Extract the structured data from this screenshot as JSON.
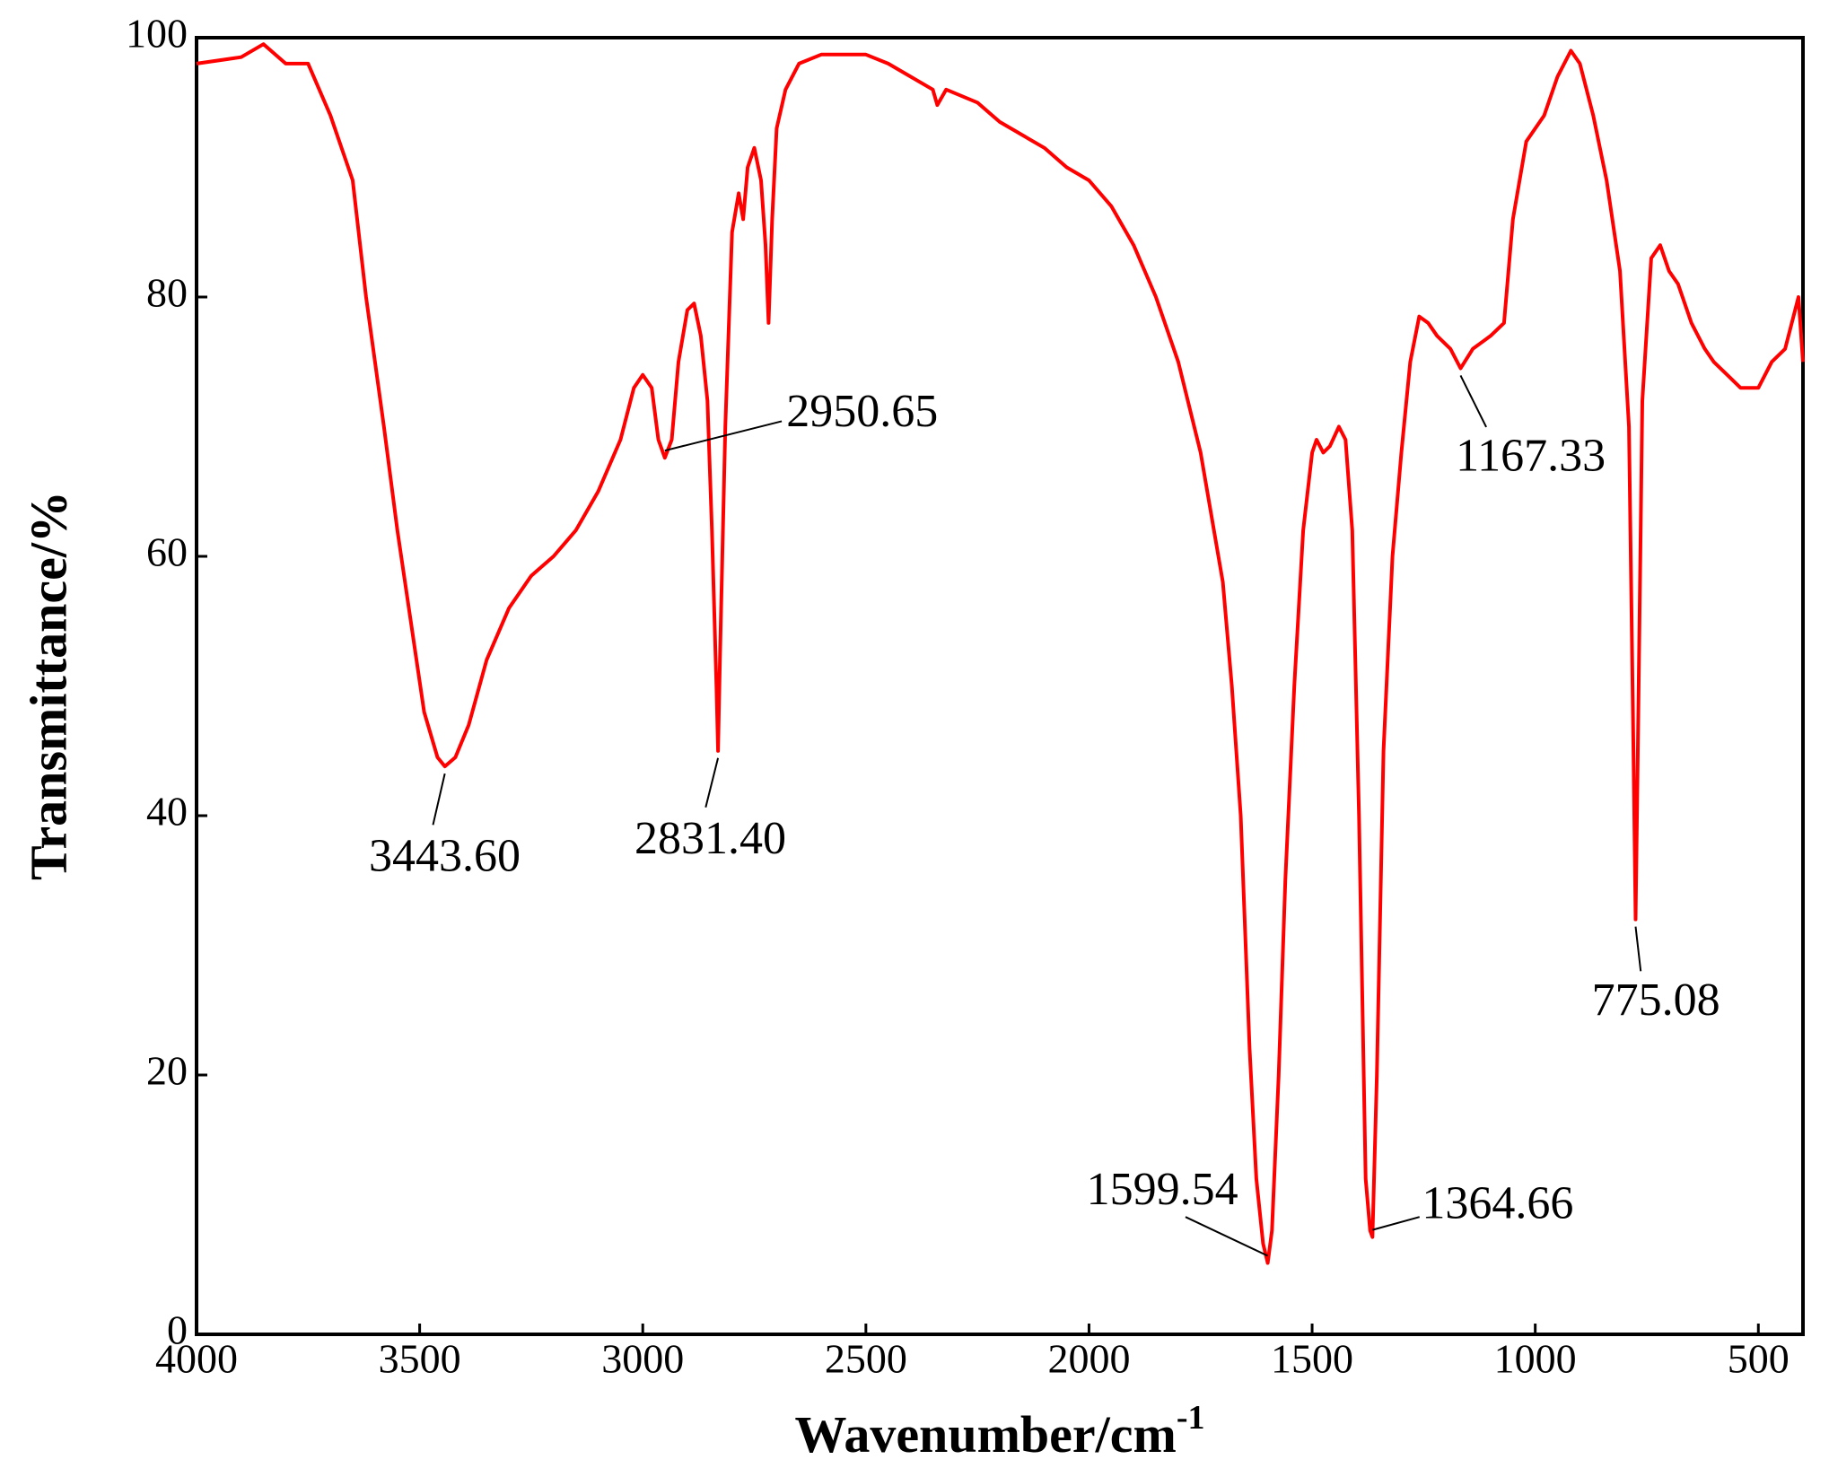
{
  "chart_data": {
    "type": "line",
    "x_label": "Wavenumber/cm",
    "x_label_sup": "-1",
    "y_label": "Transmittance/%",
    "xlim": [
      4000,
      400
    ],
    "ylim": [
      0,
      100
    ],
    "xticks": [
      4000,
      3500,
      3000,
      2500,
      2000,
      1500,
      1000,
      500
    ],
    "yticks": [
      0,
      20,
      40,
      60,
      80,
      100
    ],
    "grid": false,
    "series": [
      {
        "color": "#ff0000",
        "x": [
          4000,
          3900,
          3850,
          3800,
          3750,
          3700,
          3650,
          3620,
          3580,
          3550,
          3520,
          3490,
          3460,
          3443.6,
          3420,
          3390,
          3350,
          3300,
          3250,
          3200,
          3150,
          3100,
          3050,
          3020,
          3000,
          2980,
          2965,
          2950.65,
          2935,
          2920,
          2900,
          2885,
          2870,
          2855,
          2845,
          2835,
          2831.4,
          2827,
          2815,
          2800,
          2785,
          2775,
          2765,
          2750,
          2735,
          2725,
          2718,
          2710,
          2700,
          2680,
          2650,
          2600,
          2500,
          2450,
          2400,
          2350,
          2340,
          2320,
          2250,
          2200,
          2100,
          2050,
          2000,
          1950,
          1900,
          1850,
          1800,
          1750,
          1700,
          1680,
          1660,
          1640,
          1625,
          1610,
          1599.54,
          1590,
          1575,
          1560,
          1540,
          1520,
          1500,
          1490,
          1475,
          1460,
          1440,
          1425,
          1410,
          1395,
          1380,
          1370,
          1364.66,
          1355,
          1340,
          1320,
          1300,
          1280,
          1260,
          1240,
          1220,
          1190,
          1167.33,
          1140,
          1100,
          1070,
          1050,
          1020,
          980,
          950,
          920,
          900,
          870,
          840,
          810,
          790,
          780,
          775.08,
          770,
          760,
          740,
          720,
          700,
          680,
          650,
          620,
          600,
          570,
          540,
          500,
          470,
          440,
          410,
          400
        ],
        "values": [
          98,
          98.5,
          99.5,
          98,
          98,
          94,
          89,
          80,
          70,
          62,
          55,
          48,
          44.5,
          43.8,
          44.5,
          47,
          52,
          56,
          58.5,
          60,
          62,
          65,
          69,
          73,
          74,
          73,
          69,
          67.6,
          69,
          75,
          79,
          79.5,
          77,
          72,
          62,
          50,
          45,
          52,
          70,
          85,
          88,
          86,
          90,
          91.5,
          89,
          84,
          78,
          86,
          93,
          96,
          98,
          98.7,
          98.7,
          98,
          97,
          96,
          94.8,
          96,
          95,
          93.5,
          91.5,
          90,
          89,
          87,
          84,
          80,
          75,
          68,
          58,
          50,
          40,
          22,
          12,
          7,
          5.5,
          8,
          20,
          35,
          50,
          62,
          68,
          69,
          68,
          68.5,
          70,
          69,
          62,
          40,
          12,
          8,
          7.5,
          20,
          45,
          60,
          68,
          75,
          78.5,
          78,
          77,
          76,
          74.5,
          76,
          77,
          78,
          86,
          92,
          94,
          97,
          99,
          98,
          94,
          89,
          82,
          70,
          45,
          32,
          45,
          72,
          83,
          84,
          82,
          81,
          78,
          76,
          75,
          74,
          73,
          73,
          75,
          76,
          80,
          75
        ]
      }
    ],
    "annotations": [
      {
        "label": "3443.60",
        "x": 3443.6,
        "y": 43.8
      },
      {
        "label": "2950.65",
        "x": 2950.65,
        "y": 67.6
      },
      {
        "label": "2831.40",
        "x": 2831.4,
        "y": 45
      },
      {
        "label": "1599.54",
        "x": 1599.54,
        "y": 5.5
      },
      {
        "label": "1364.66",
        "x": 1364.66,
        "y": 7.5
      },
      {
        "label": "1167.33",
        "x": 1167.33,
        "y": 74.5
      },
      {
        "label": "775.08",
        "x": 775.08,
        "y": 32
      }
    ]
  }
}
